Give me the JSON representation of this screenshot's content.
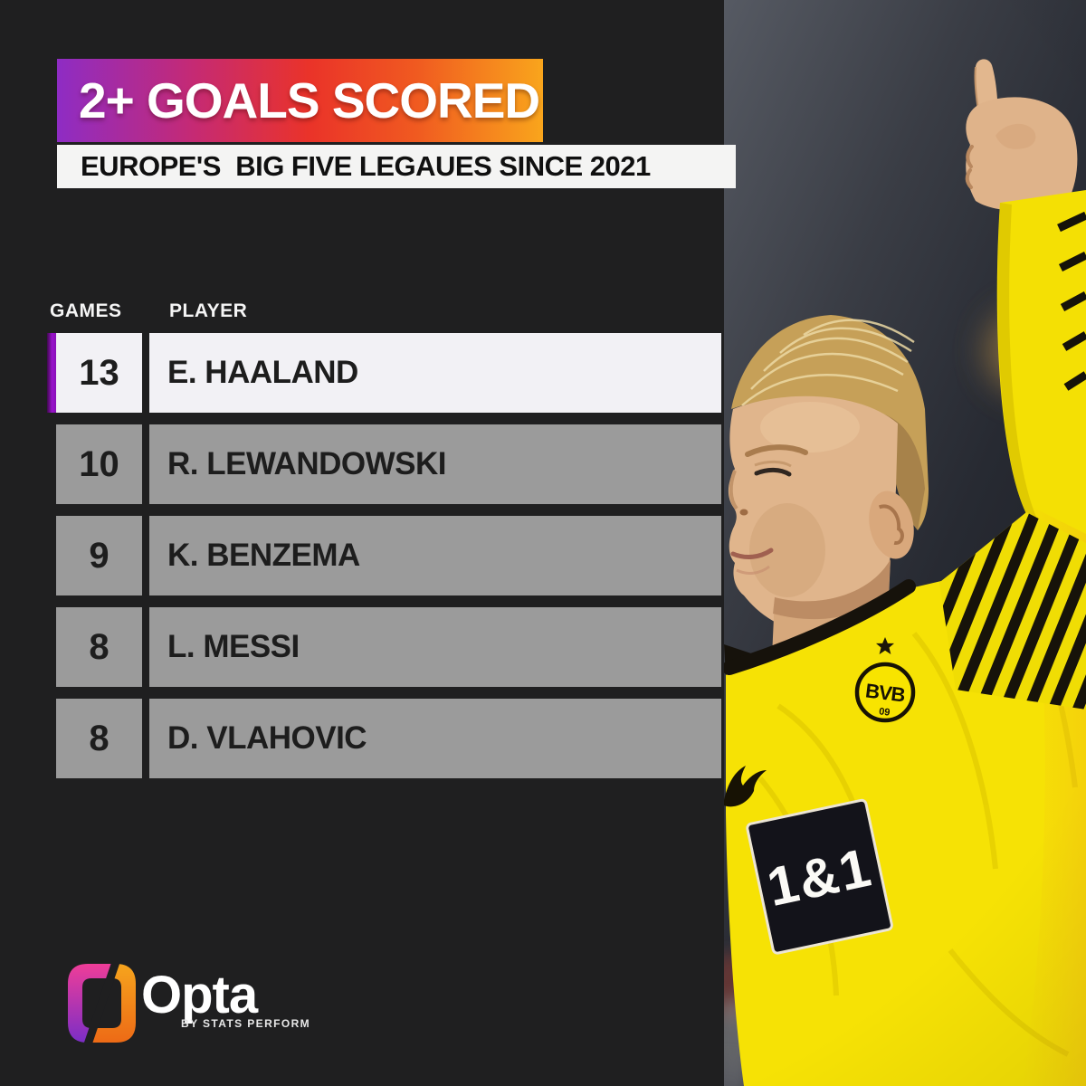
{
  "header": {
    "title": "2+ GOALS SCORED",
    "subtitle": "EUROPE'S  BIG FIVE LEGAUES SINCE 2021"
  },
  "table": {
    "games_label": "GAMES",
    "player_label": "PLAYER",
    "rows": [
      {
        "games": "13",
        "player": "E. HAALAND",
        "highlighted": true
      },
      {
        "games": "10",
        "player": "R. LEWANDOWSKI",
        "highlighted": false
      },
      {
        "games": "9",
        "player": "K. BENZEMA",
        "highlighted": false
      },
      {
        "games": "8",
        "player": "L. MESSI",
        "highlighted": false
      },
      {
        "games": "8",
        "player": "D. VLAHOVIC",
        "highlighted": false
      }
    ]
  },
  "branding": {
    "wordmark": "Opta",
    "tagline": "BY STATS PERFORM"
  },
  "photo": {
    "description": "Erling Haaland in yellow Borussia Dortmund kit celebrating with index finger raised",
    "crest_text": "BVB",
    "crest_number": "09",
    "sponsor_text": "1&1"
  },
  "colors": {
    "background": "#1f1f20",
    "banner_gradient": [
      "#8e2cc4",
      "#ea3329",
      "#f9a51c"
    ],
    "highlight_bar": "#9a13cc",
    "row_highlight_bg": "#f2f1f5",
    "row_bg": "#9b9b9b",
    "jersey_yellow": "#f6e205"
  },
  "chart_data": {
    "type": "table",
    "title": "2+ GOALS SCORED",
    "subtitle": "EUROPE'S  BIG FIVE LEGAUES SINCE 2021",
    "columns": [
      "GAMES",
      "PLAYER"
    ],
    "categories": [
      "E. HAALAND",
      "R. LEWANDOWSKI",
      "K. BENZEMA",
      "L. MESSI",
      "D. VLAHOVIC"
    ],
    "values": [
      13,
      10,
      9,
      8,
      8
    ]
  }
}
